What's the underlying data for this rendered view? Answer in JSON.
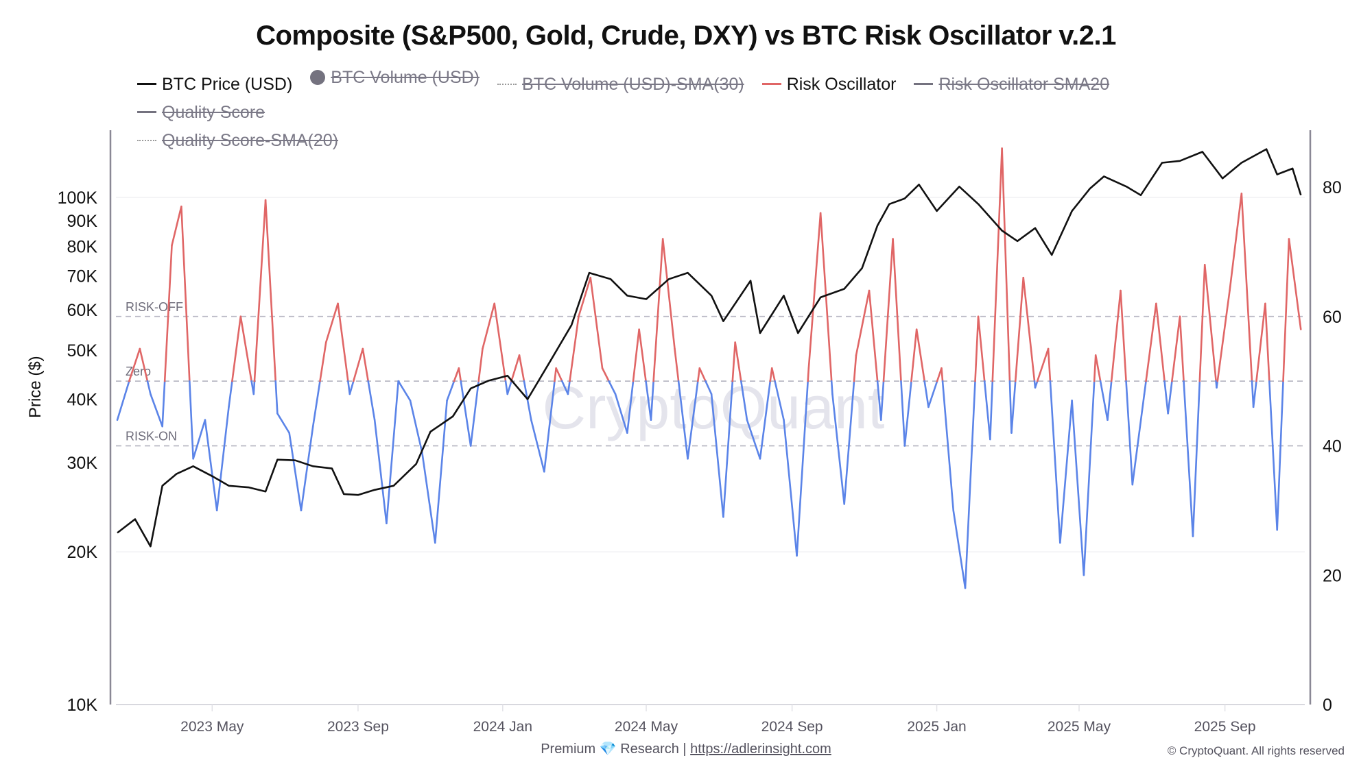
{
  "chart_data": {
    "type": "line",
    "title": "Composite (S&P500, Gold, Crude, DXY) vs BTC Risk Oscillator v.2.1",
    "watermark": "CryptoQuant",
    "legend": [
      {
        "label": "BTC Price (USD)",
        "color": "#111111",
        "style": "solid",
        "hidden": false
      },
      {
        "label": "BTC Volume (USD)",
        "color": "#74727f",
        "style": "dot",
        "hidden": true
      },
      {
        "label": "BTC Volume (USD)-SMA(30)",
        "color": "#999999",
        "style": "dotted",
        "hidden": true
      },
      {
        "label": "Risk Oscillator",
        "color": "#e06666",
        "style": "solid",
        "hidden": false
      },
      {
        "label": "Risk Oscillator SMA20",
        "color": "#74727f",
        "style": "solid",
        "hidden": true
      },
      {
        "label": "Quality Score",
        "color": "#74727f",
        "style": "solid",
        "hidden": true
      },
      {
        "label": "Quality Score-SMA(20)",
        "color": "#999999",
        "style": "dotted",
        "hidden": true
      }
    ],
    "legend_position": "top",
    "ylabel": "Price ($)",
    "y_left": {
      "scale": "log",
      "range": [
        10000,
        140000
      ],
      "ticks": [
        10000,
        20000,
        30000,
        40000,
        50000,
        60000,
        70000,
        80000,
        90000,
        100000
      ],
      "tick_labels": [
        "10K",
        "20K",
        "30K",
        "40K",
        "50K",
        "60K",
        "70K",
        "80K",
        "90K",
        "100K"
      ]
    },
    "y_right": {
      "scale": "linear",
      "range": [
        0,
        88
      ],
      "ticks": [
        0,
        20,
        40,
        60,
        80
      ],
      "tick_labels": [
        "0",
        "20",
        "40",
        "60",
        "80"
      ]
    },
    "x_range": [
      "2023-02-10",
      "2025-11-05"
    ],
    "x_ticks": [
      {
        "date": "2023-05-01",
        "label": "2023 May"
      },
      {
        "date": "2023-09-01",
        "label": "2023 Sep"
      },
      {
        "date": "2024-01-01",
        "label": "2024 Jan"
      },
      {
        "date": "2024-05-01",
        "label": "2024 May"
      },
      {
        "date": "2024-09-01",
        "label": "2024 Sep"
      },
      {
        "date": "2025-01-01",
        "label": "2025 Jan"
      },
      {
        "date": "2025-05-01",
        "label": "2025 May"
      },
      {
        "date": "2025-09-01",
        "label": "2025 Sep"
      }
    ],
    "reference_lines": [
      {
        "label": "RISK-OFF",
        "value": 60
      },
      {
        "label": "Zero",
        "value": 50
      },
      {
        "label": "RISK-ON",
        "value": 40
      }
    ],
    "oscillator_colors": {
      "above": "#e06666",
      "below": "#5b84e8"
    },
    "zero_level": 50,
    "btc_price": {
      "dates": [
        "2023-02-10",
        "2023-02-25",
        "2023-03-10",
        "2023-03-20",
        "2023-04-01",
        "2023-04-15",
        "2023-05-01",
        "2023-05-15",
        "2023-06-01",
        "2023-06-15",
        "2023-06-25",
        "2023-07-10",
        "2023-07-25",
        "2023-08-10",
        "2023-08-20",
        "2023-09-01",
        "2023-09-15",
        "2023-10-01",
        "2023-10-20",
        "2023-11-01",
        "2023-11-20",
        "2023-12-05",
        "2023-12-20",
        "2024-01-05",
        "2024-01-22",
        "2024-02-10",
        "2024-02-28",
        "2024-03-14",
        "2024-04-01",
        "2024-04-15",
        "2024-05-01",
        "2024-05-20",
        "2024-06-05",
        "2024-06-25",
        "2024-07-05",
        "2024-07-28",
        "2024-08-05",
        "2024-08-25",
        "2024-09-06",
        "2024-09-25",
        "2024-10-15",
        "2024-10-30",
        "2024-11-12",
        "2024-11-22",
        "2024-12-05",
        "2024-12-17",
        "2025-01-01",
        "2025-01-20",
        "2025-02-05",
        "2025-02-25",
        "2025-03-10",
        "2025-03-25",
        "2025-04-08",
        "2025-04-25",
        "2025-05-10",
        "2025-05-22",
        "2025-06-10",
        "2025-06-22",
        "2025-07-10",
        "2025-07-25",
        "2025-08-13",
        "2025-08-30",
        "2025-09-15",
        "2025-10-06",
        "2025-10-15",
        "2025-10-28",
        "2025-11-04"
      ],
      "values": [
        21800,
        23200,
        20500,
        27000,
        28500,
        29500,
        28200,
        27000,
        26800,
        26300,
        30400,
        30300,
        29500,
        29200,
        26000,
        25900,
        26500,
        27000,
        29800,
        34500,
        37000,
        42000,
        43500,
        44500,
        40000,
        47500,
        56000,
        71000,
        69000,
        64000,
        63000,
        69000,
        71000,
        64000,
        57000,
        68500,
        54000,
        64000,
        54000,
        63500,
        66000,
        72500,
        88000,
        97000,
        99500,
        106000,
        94000,
        105000,
        97000,
        86000,
        82000,
        87000,
        77000,
        94000,
        104000,
        110000,
        105000,
        101000,
        117000,
        118000,
        123000,
        109000,
        117000,
        124500,
        111000,
        114000,
        101000
      ]
    },
    "risk_oscillator": {
      "dates": [
        "2023-02-10",
        "2023-02-20",
        "2023-03-01",
        "2023-03-10",
        "2023-03-20",
        "2023-03-28",
        "2023-04-05",
        "2023-04-15",
        "2023-04-25",
        "2023-05-05",
        "2023-05-15",
        "2023-05-25",
        "2023-06-05",
        "2023-06-15",
        "2023-06-25",
        "2023-07-05",
        "2023-07-15",
        "2023-07-25",
        "2023-08-05",
        "2023-08-15",
        "2023-08-25",
        "2023-09-05",
        "2023-09-15",
        "2023-09-25",
        "2023-10-05",
        "2023-10-15",
        "2023-10-25",
        "2023-11-05",
        "2023-11-15",
        "2023-11-25",
        "2023-12-05",
        "2023-12-15",
        "2023-12-25",
        "2024-01-05",
        "2024-01-15",
        "2024-01-25",
        "2024-02-05",
        "2024-02-15",
        "2024-02-25",
        "2024-03-05",
        "2024-03-15",
        "2024-03-25",
        "2024-04-05",
        "2024-04-15",
        "2024-04-25",
        "2024-05-05",
        "2024-05-15",
        "2024-05-25",
        "2024-06-05",
        "2024-06-15",
        "2024-06-25",
        "2024-07-05",
        "2024-07-15",
        "2024-07-25",
        "2024-08-05",
        "2024-08-15",
        "2024-08-25",
        "2024-09-05",
        "2024-09-15",
        "2024-09-25",
        "2024-10-05",
        "2024-10-15",
        "2024-10-25",
        "2024-11-05",
        "2024-11-15",
        "2024-11-25",
        "2024-12-05",
        "2024-12-15",
        "2024-12-25",
        "2025-01-05",
        "2025-01-15",
        "2025-01-25",
        "2025-02-05",
        "2025-02-15",
        "2025-02-25",
        "2025-03-05",
        "2025-03-15",
        "2025-03-25",
        "2025-04-05",
        "2025-04-15",
        "2025-04-25",
        "2025-05-05",
        "2025-05-15",
        "2025-05-25",
        "2025-06-05",
        "2025-06-15",
        "2025-06-25",
        "2025-07-05",
        "2025-07-15",
        "2025-07-25",
        "2025-08-05",
        "2025-08-15",
        "2025-08-25",
        "2025-09-05",
        "2025-09-15",
        "2025-09-25",
        "2025-10-05",
        "2025-10-15",
        "2025-10-25",
        "2025-11-04"
      ],
      "values": [
        44,
        50,
        55,
        48,
        43,
        71,
        77,
        38,
        44,
        30,
        46,
        60,
        48,
        78,
        45,
        42,
        30,
        43,
        56,
        62,
        48,
        55,
        44,
        28,
        50,
        47,
        39,
        25,
        47,
        52,
        40,
        55,
        62,
        48,
        54,
        44,
        36,
        52,
        48,
        60,
        66,
        52,
        48,
        42,
        58,
        44,
        72,
        55,
        38,
        52,
        48,
        29,
        56,
        44,
        38,
        52,
        44,
        23,
        52,
        76,
        48,
        31,
        54,
        64,
        44,
        72,
        40,
        58,
        46,
        52,
        30,
        18,
        60,
        41,
        86,
        42,
        66,
        49,
        55,
        25,
        47,
        20,
        54,
        44,
        64,
        34,
        48,
        62,
        45,
        60,
        26,
        68,
        49,
        64,
        79,
        46,
        62,
        27,
        72,
        58
      ]
    }
  },
  "footer": {
    "prefix": "Premium",
    "gem_icon": "💎",
    "middle": "Research |",
    "link": "https://adlerinsight.com",
    "copyright": "© CryptoQuant. All rights reserved"
  }
}
